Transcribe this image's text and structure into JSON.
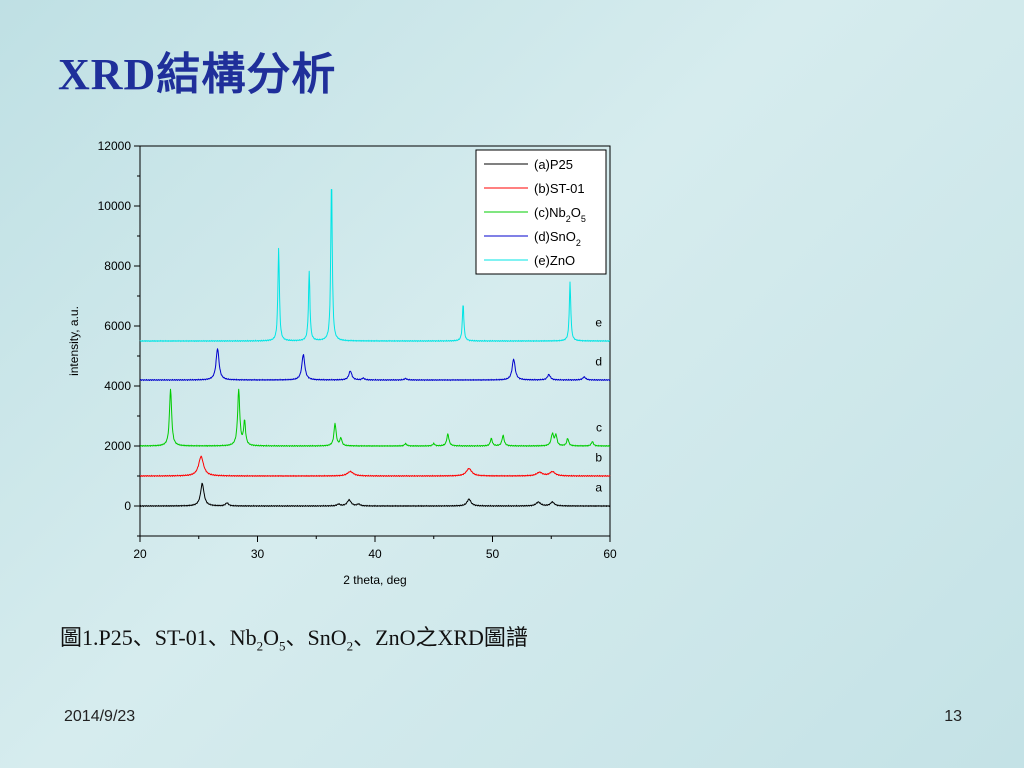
{
  "slide": {
    "title": "XRD結構分析",
    "caption": "圖1.P25、ST-01、Nb2O5、SnO2、ZnO之XRD圖譜",
    "caption_parts": [
      {
        "t": "圖1.P25、ST-01、Nb"
      },
      {
        "sub": "2"
      },
      {
        "t": "O"
      },
      {
        "sub": "5"
      },
      {
        "t": "、SnO"
      },
      {
        "sub": "2"
      },
      {
        "t": "、ZnO之XRD圖譜"
      }
    ],
    "date": "2014/9/23",
    "page_number": "13"
  },
  "chart_data": {
    "type": "line",
    "xlabel": "2 theta, deg",
    "ylabel": "intensity, a.u.",
    "xlim": [
      20,
      60
    ],
    "ylim": [
      -1000,
      12000
    ],
    "x_ticks": [
      20,
      30,
      40,
      50,
      60
    ],
    "y_ticks": [
      0,
      2000,
      4000,
      6000,
      8000,
      10000,
      12000
    ],
    "legend_position": "top-right",
    "series": [
      {
        "name": "(a)P25",
        "name_parts": [
          {
            "t": "(a)P25"
          }
        ],
        "label": "a",
        "color": "#000000",
        "baseline": 0,
        "peaks": [
          [
            25.3,
            750,
            0.35
          ],
          [
            27.4,
            100,
            0.3
          ],
          [
            36.9,
            60,
            0.3
          ],
          [
            37.8,
            200,
            0.4
          ],
          [
            38.6,
            60,
            0.3
          ],
          [
            48.0,
            230,
            0.4
          ],
          [
            53.9,
            130,
            0.45
          ],
          [
            55.1,
            130,
            0.4
          ]
        ]
      },
      {
        "name": "(b)ST-01",
        "name_parts": [
          {
            "t": "(b)ST-01"
          }
        ],
        "label": "b",
        "color": "#ff0000",
        "baseline": 1000,
        "peaks": [
          [
            25.2,
            650,
            0.5
          ],
          [
            37.9,
            150,
            0.6
          ],
          [
            48.0,
            250,
            0.55
          ],
          [
            54.0,
            120,
            0.6
          ],
          [
            55.1,
            140,
            0.55
          ]
        ]
      },
      {
        "name": "(c)Nb2O5",
        "name_parts": [
          {
            "t": "(c)Nb"
          },
          {
            "sub": "2"
          },
          {
            "t": "O"
          },
          {
            "sub": "5"
          }
        ],
        "label": "c",
        "color": "#00cc00",
        "baseline": 2000,
        "peaks": [
          [
            22.6,
            1900,
            0.22
          ],
          [
            28.4,
            1850,
            0.22
          ],
          [
            28.9,
            800,
            0.2
          ],
          [
            36.6,
            750,
            0.22
          ],
          [
            37.1,
            250,
            0.2
          ],
          [
            42.6,
            80,
            0.2
          ],
          [
            45.0,
            80,
            0.2
          ],
          [
            46.2,
            400,
            0.22
          ],
          [
            49.9,
            250,
            0.2
          ],
          [
            50.9,
            350,
            0.22
          ],
          [
            55.1,
            400,
            0.25
          ],
          [
            55.4,
            350,
            0.2
          ],
          [
            56.4,
            250,
            0.2
          ],
          [
            58.5,
            150,
            0.2
          ]
        ]
      },
      {
        "name": "(d)SnO2",
        "name_parts": [
          {
            "t": "(d)SnO"
          },
          {
            "sub": "2"
          }
        ],
        "label": "d",
        "color": "#0000cc",
        "baseline": 4200,
        "peaks": [
          [
            26.6,
            1050,
            0.3
          ],
          [
            33.9,
            850,
            0.3
          ],
          [
            37.9,
            300,
            0.3
          ],
          [
            39.0,
            60,
            0.25
          ],
          [
            42.6,
            50,
            0.25
          ],
          [
            51.8,
            700,
            0.3
          ],
          [
            54.8,
            180,
            0.3
          ],
          [
            57.8,
            100,
            0.3
          ]
        ]
      },
      {
        "name": "(e)ZnO",
        "name_parts": [
          {
            "t": "(e)ZnO"
          }
        ],
        "label": "e",
        "color": "#00e5e5",
        "baseline": 5500,
        "peaks": [
          [
            31.8,
            3100,
            0.15
          ],
          [
            34.4,
            2300,
            0.15
          ],
          [
            36.3,
            5400,
            0.15
          ],
          [
            47.5,
            1250,
            0.15
          ],
          [
            56.6,
            1950,
            0.15
          ]
        ]
      }
    ]
  }
}
